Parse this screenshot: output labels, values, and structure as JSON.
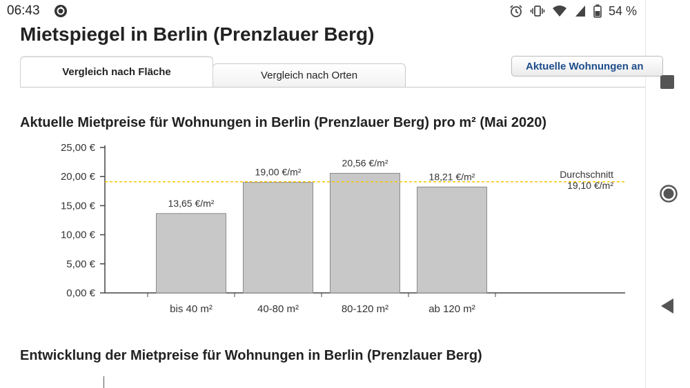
{
  "status_bar": {
    "time": "06:43",
    "battery": "54 %"
  },
  "page": {
    "title": "Mietspiegel in Berlin (Prenzlauer Berg)",
    "tabs": [
      {
        "label": "Vergleich nach Fläche",
        "active": true
      },
      {
        "label": "Vergleich nach Orten",
        "active": false
      }
    ],
    "listings_button": "Aktuelle Wohnungen an",
    "section1_title": "Aktuelle Mietpreise für Wohnungen in Berlin (Prenzlauer Berg) pro m² (Mai 2020)",
    "section2_title": "Entwicklung der Mietpreise für Wohnungen in Berlin (Prenzlauer Berg)"
  },
  "chart_data": {
    "type": "bar",
    "categories": [
      "bis 40 m²",
      "40-80 m²",
      "80-120 m²",
      "ab 120 m²"
    ],
    "values": [
      13.65,
      19.0,
      20.56,
      18.21
    ],
    "value_labels": [
      "13,65 €/m²",
      "19,00 €/m²",
      "20,56 €/m²",
      "18,21 €/m²"
    ],
    "yticks": [
      0,
      5,
      10,
      15,
      20,
      25
    ],
    "ytick_labels": [
      "0,00 €",
      "5,00 €",
      "10,00 €",
      "15,00 €",
      "20,00 €",
      "25,00 €"
    ],
    "ylim": [
      0,
      25
    ],
    "average": {
      "label": "Durchschnitt",
      "value": 19.1,
      "value_label": "19,10 €/m²"
    },
    "colors": {
      "bar": "#c8c8c8",
      "bar_border": "#8a8a8a",
      "average_line": "#f5c400"
    }
  }
}
